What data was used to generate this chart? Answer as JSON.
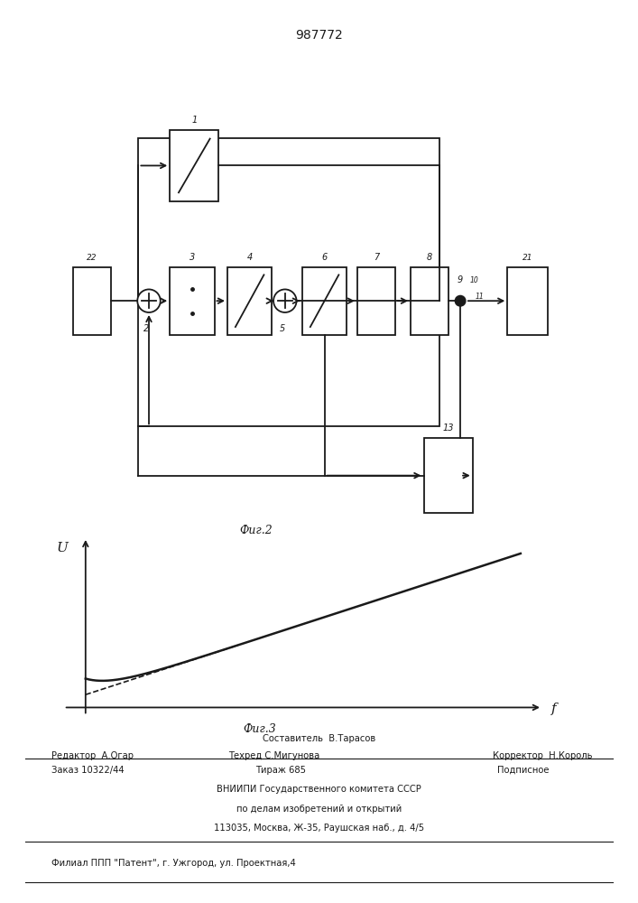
{
  "title": "987772",
  "title_fontsize": 10,
  "line_color": "#1a1a1a",
  "axis_label_u": "U",
  "axis_label_f": "f",
  "fig2_label": "Фиг.2",
  "fig3_label": "Фиг.3",
  "footer_line0": "Составитель  В.Тарасов",
  "footer_line1a": "Редактор  А.Огар",
  "footer_line1b": "Техред С.Мигунова",
  "footer_line1c": "Корректор  Н.Король",
  "footer_line2a": "Заказ 10322/44",
  "footer_line2b": "Тираж 685",
  "footer_line2c": "Подписное",
  "footer_line3": "ВНИИПИ Государственного комитета СССР",
  "footer_line4": "по делам изобретений и открытий",
  "footer_line5": "113035, Москва, Ж-35, Раушская наб., д. 4/5",
  "footer_line6": "Филиал ППП \"Патент\", г. Ужгород, ул. Проектная,4"
}
